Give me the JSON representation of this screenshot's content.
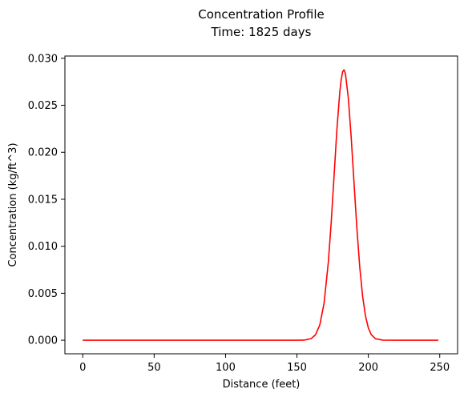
{
  "chart_data": {
    "type": "line",
    "title": "Concentration Profile",
    "subtitle": "Time: 1825 days",
    "xlabel": "Distance (feet)",
    "ylabel": "Concentration  (kg/ft^3)",
    "xlim": [
      -12.5,
      262.5
    ],
    "ylim": [
      -0.00144,
      0.03024
    ],
    "xticks": [
      0,
      50,
      100,
      150,
      200,
      250
    ],
    "xtick_labels": [
      "0",
      "50",
      "100",
      "150",
      "200",
      "250"
    ],
    "yticks": [
      0.0,
      0.005,
      0.01,
      0.015,
      0.02,
      0.025,
      0.03
    ],
    "ytick_labels": [
      "0.000",
      "0.005",
      "0.010",
      "0.015",
      "0.020",
      "0.025",
      "0.030"
    ],
    "grid": false,
    "series": [
      {
        "color": "#ff0000",
        "x": [
          0,
          20,
          40,
          60,
          80,
          100,
          120,
          140,
          150,
          155,
          160,
          163,
          166,
          169,
          172,
          174,
          176,
          178,
          180,
          181,
          182,
          183,
          184,
          186,
          188,
          190,
          192,
          194,
          196,
          198,
          200,
          202,
          205,
          210,
          220,
          230,
          240,
          249
        ],
        "y": [
          0,
          0,
          0,
          0,
          0,
          0,
          0,
          0,
          0,
          1e-05,
          0.00018,
          0.00058,
          0.00162,
          0.00394,
          0.00834,
          0.01255,
          0.01749,
          0.02246,
          0.0264,
          0.02773,
          0.02857,
          0.02877,
          0.02832,
          0.02574,
          0.02158,
          0.01668,
          0.01187,
          0.00776,
          0.00467,
          0.00258,
          0.00131,
          0.00061,
          0.00016,
          1e-05,
          0,
          0,
          0,
          0
        ]
      }
    ]
  }
}
